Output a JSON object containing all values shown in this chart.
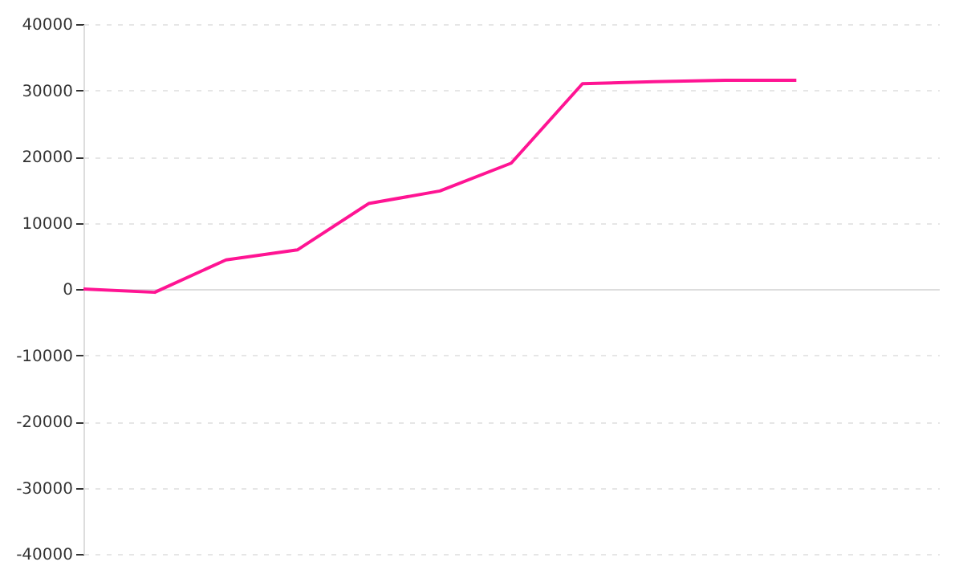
{
  "chart_data": {
    "type": "line",
    "categories": [
      null,
      null,
      null,
      null,
      null,
      null,
      null,
      null,
      null,
      null,
      null,
      null,
      null
    ],
    "series": [
      {
        "color": "#ff1493",
        "values": [
          0,
          -500,
          4400,
          5900,
          12900,
          14800,
          19000,
          31000,
          31300,
          31500,
          31500,
          null,
          null
        ]
      }
    ],
    "ylim": [
      -40000,
      40000
    ],
    "yticks": [
      -40000,
      -30000,
      -20000,
      -10000,
      0,
      10000,
      20000,
      30000,
      40000
    ],
    "grid": "y",
    "tick_labels": "y",
    "marker": "none",
    "line_style": "solid"
  }
}
